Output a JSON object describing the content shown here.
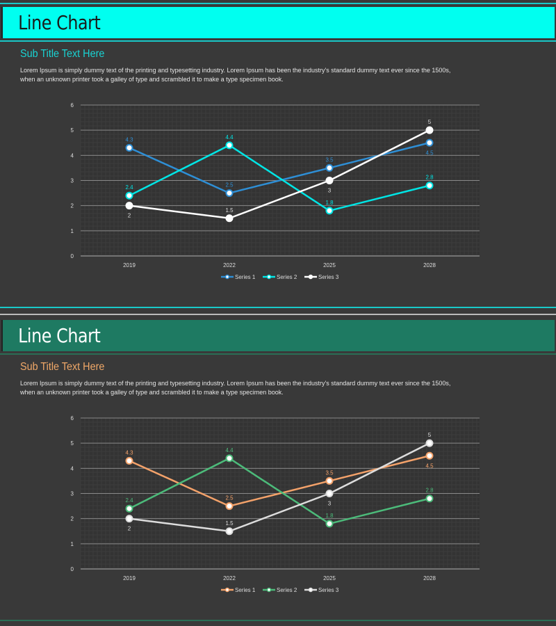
{
  "panels": [
    {
      "title": "Line Chart",
      "subtitle": "Sub Title Text Here",
      "description_line1": "Lorem Ipsum is simply dummy text of the printing and typesetting industry. Lorem Ipsum has been the industry's standard dummy text ever since the 1500s,",
      "description_line2": "when an unknown printer took a galley of type and scrambled it to make a type specimen book.",
      "colors": {
        "band": "#00fff0",
        "title": "#1a1a1a",
        "subtitle": "#19d3d3",
        "accent_line": "#19c9c9"
      }
    },
    {
      "title": "Line Chart",
      "subtitle": "Sub Title Text Here",
      "description_line1": "Lorem Ipsum is simply dummy text of the printing and typesetting industry. Lorem Ipsum has been the industry's standard dummy text ever since the 1500s,",
      "description_line2": "when an unknown printer took a galley of type and scrambled it to make a type specimen book.",
      "colors": {
        "band": "#1e7a62",
        "title": "#ffffff",
        "subtitle": "#f0a868",
        "accent_line": "#2a6e55"
      }
    }
  ],
  "chart_data": [
    {
      "type": "line",
      "categories": [
        "2019",
        "2022",
        "2025",
        "2028"
      ],
      "ylim": [
        0,
        6
      ],
      "yticks": [
        0,
        1,
        2,
        3,
        4,
        5,
        6
      ],
      "grid": true,
      "legend": "bottom",
      "series": [
        {
          "name": "Series 1",
          "values": [
            4.3,
            2.5,
            3.5,
            4.5
          ],
          "color": "#2e8fd6"
        },
        {
          "name": "Series 2",
          "values": [
            2.4,
            4.4,
            1.8,
            2.8
          ],
          "color": "#00e5e5"
        },
        {
          "name": "Series 3",
          "values": [
            2,
            1.5,
            3,
            5
          ],
          "color": "#ffffff"
        }
      ]
    },
    {
      "type": "line",
      "categories": [
        "2019",
        "2022",
        "2025",
        "2028"
      ],
      "ylim": [
        0,
        6
      ],
      "yticks": [
        0,
        1,
        2,
        3,
        4,
        5,
        6
      ],
      "grid": true,
      "legend": "bottom",
      "series": [
        {
          "name": "Series 1",
          "values": [
            4.3,
            2.5,
            3.5,
            4.5
          ],
          "color": "#f4a26a"
        },
        {
          "name": "Series 2",
          "values": [
            2.4,
            4.4,
            1.8,
            2.8
          ],
          "color": "#4cbb7a"
        },
        {
          "name": "Series 3",
          "values": [
            2,
            1.5,
            3,
            5
          ],
          "color": "#dddddd"
        }
      ]
    }
  ]
}
